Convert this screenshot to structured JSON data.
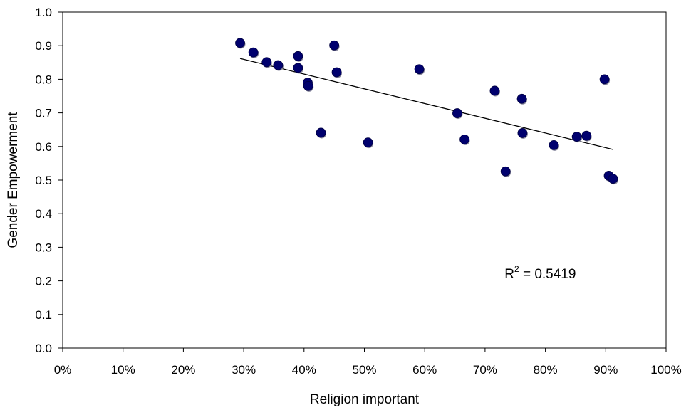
{
  "chart_data": {
    "type": "scatter",
    "title": "",
    "xlabel": "Religion important",
    "ylabel": "Gender Empowerment",
    "xlim": [
      0,
      1.0
    ],
    "ylim": [
      0,
      1.0
    ],
    "x_ticks": [
      "0%",
      "10%",
      "20%",
      "30%",
      "40%",
      "50%",
      "60%",
      "70%",
      "80%",
      "90%",
      "100%"
    ],
    "y_ticks": [
      "0.0",
      "0.1",
      "0.2",
      "0.3",
      "0.4",
      "0.5",
      "0.6",
      "0.7",
      "0.8",
      "0.9",
      "1.0"
    ],
    "grid": false,
    "legend": "none",
    "marker_color": "#00006e",
    "points": [
      {
        "x": 0.294,
        "y": 0.908
      },
      {
        "x": 0.316,
        "y": 0.88
      },
      {
        "x": 0.338,
        "y": 0.851
      },
      {
        "x": 0.357,
        "y": 0.842
      },
      {
        "x": 0.39,
        "y": 0.869
      },
      {
        "x": 0.39,
        "y": 0.834
      },
      {
        "x": 0.406,
        "y": 0.79
      },
      {
        "x": 0.407,
        "y": 0.78
      },
      {
        "x": 0.428,
        "y": 0.641
      },
      {
        "x": 0.45,
        "y": 0.901
      },
      {
        "x": 0.454,
        "y": 0.821
      },
      {
        "x": 0.506,
        "y": 0.612
      },
      {
        "x": 0.591,
        "y": 0.83
      },
      {
        "x": 0.654,
        "y": 0.699
      },
      {
        "x": 0.666,
        "y": 0.621
      },
      {
        "x": 0.716,
        "y": 0.766
      },
      {
        "x": 0.734,
        "y": 0.526
      },
      {
        "x": 0.761,
        "y": 0.742
      },
      {
        "x": 0.762,
        "y": 0.64
      },
      {
        "x": 0.814,
        "y": 0.604
      },
      {
        "x": 0.852,
        "y": 0.629
      },
      {
        "x": 0.868,
        "y": 0.632
      },
      {
        "x": 0.898,
        "y": 0.8
      },
      {
        "x": 0.905,
        "y": 0.513
      },
      {
        "x": 0.912,
        "y": 0.504
      }
    ],
    "trendline": {
      "type": "linear",
      "x_start": 0.294,
      "y_start": 0.862,
      "x_end": 0.912,
      "y_end": 0.591
    },
    "annotation": {
      "base": "R",
      "superscript": "2",
      "text": " = 0.5419",
      "x": 0.75,
      "y": 0.22
    }
  }
}
